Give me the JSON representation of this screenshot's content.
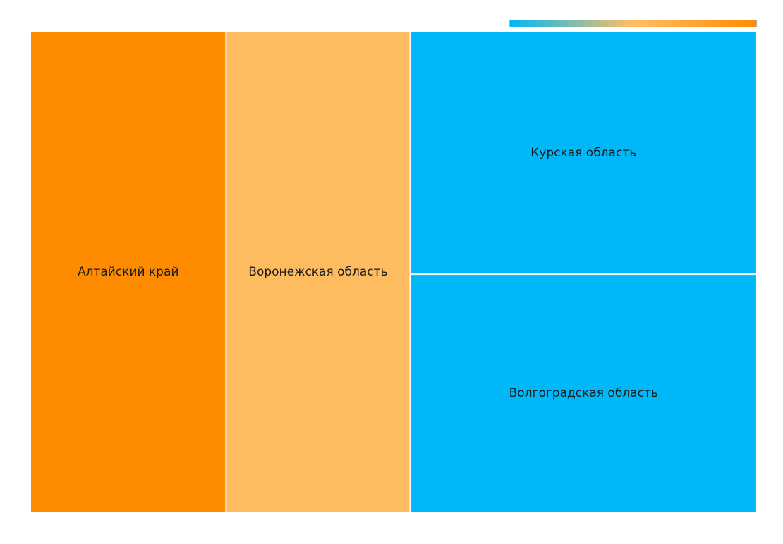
{
  "chart_data": {
    "type": "treemap",
    "color_scale": {
      "low_color": "#00b8f5",
      "mid_color": "#ffbf64",
      "high_color": "#ff8c00"
    },
    "items": [
      {
        "label": "Алтайский край",
        "value": 187,
        "color": "#ff8c00"
      },
      {
        "label": "Воронежская область",
        "value": 176,
        "color": "#ffbb5f"
      },
      {
        "label": "Курская область",
        "value": 167,
        "color": "#00b8f7"
      },
      {
        "label": "Волгоградская область",
        "value": 163,
        "color": "#00b8f7"
      }
    ]
  }
}
